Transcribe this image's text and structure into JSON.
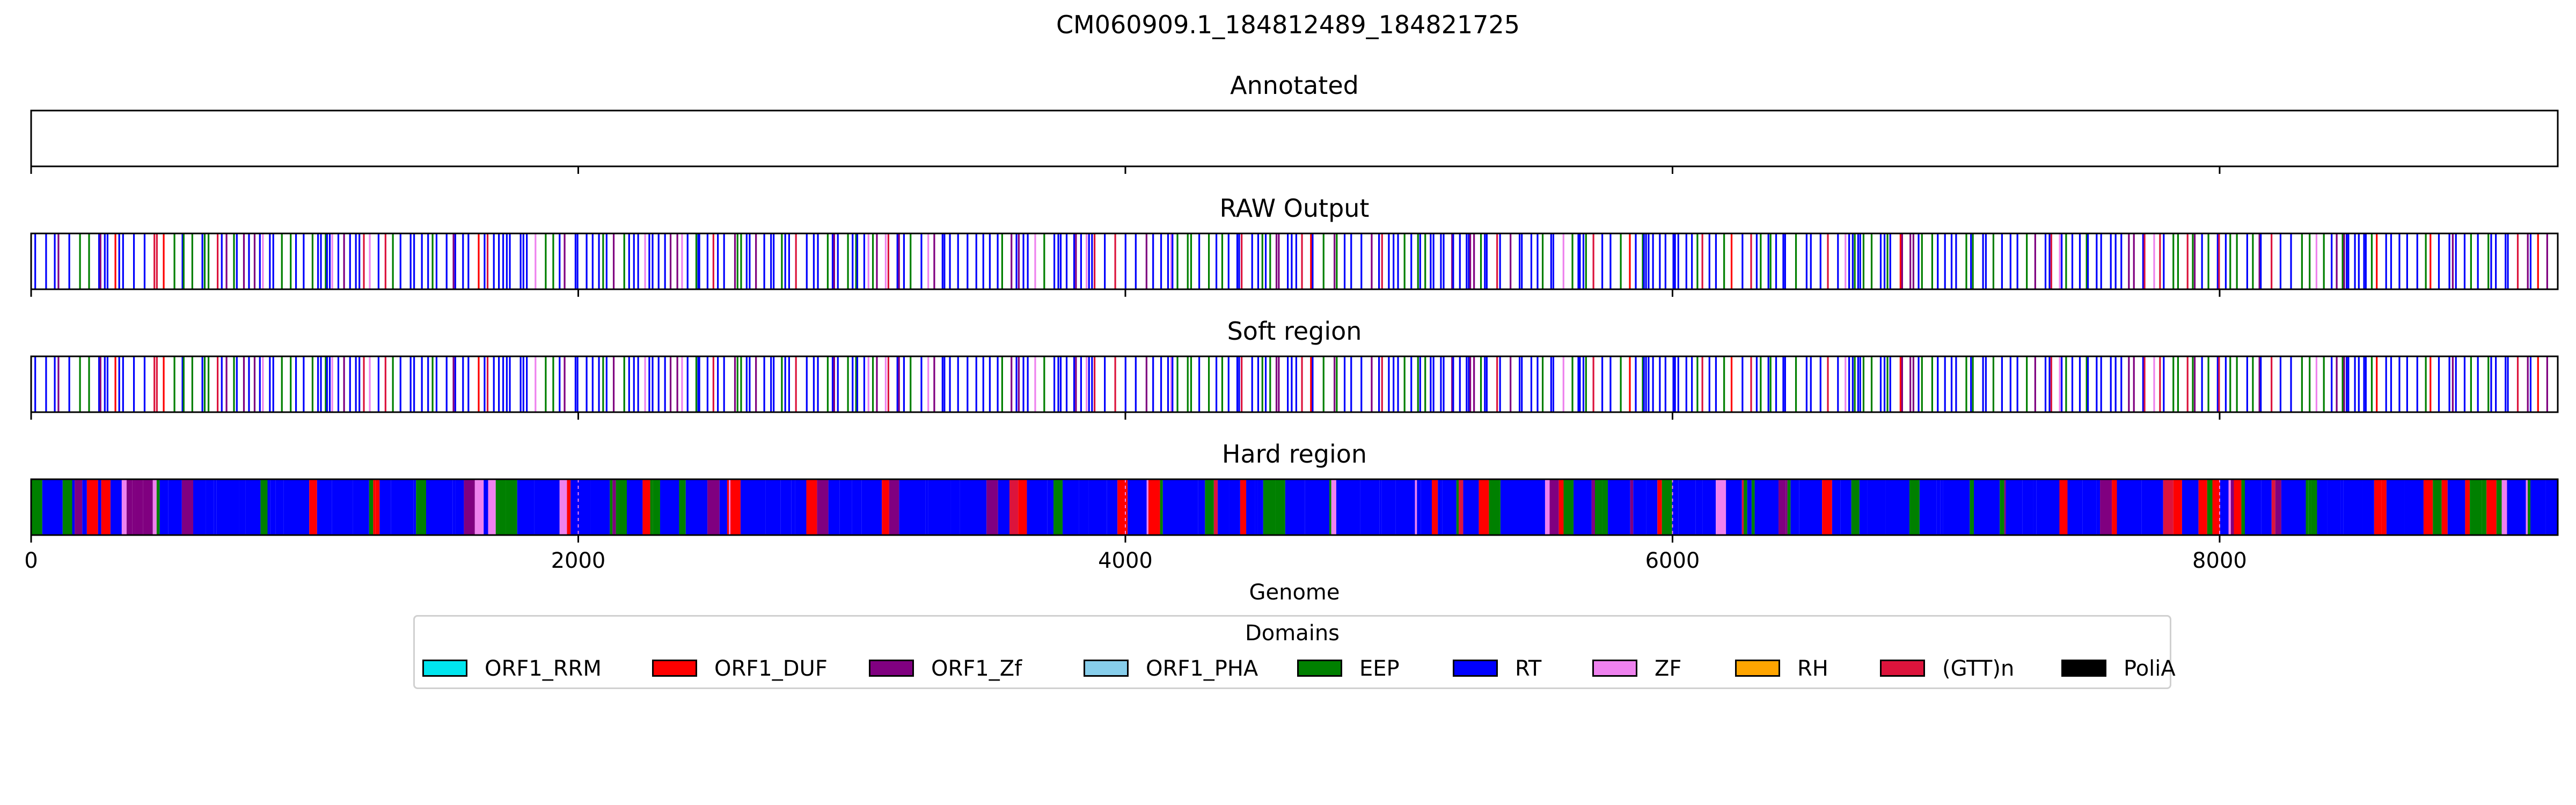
{
  "chart_data": {
    "type": "genome-track",
    "title": "CM060909.1_184812489_184821725",
    "xlabel": "Genome",
    "xlim": [
      0,
      9236
    ],
    "xticks": [
      0,
      2000,
      4000,
      6000,
      8000
    ],
    "tracks": [
      {
        "title": "Annotated",
        "mode": "empty"
      },
      {
        "title": "RAW Output",
        "mode": "lines"
      },
      {
        "title": "Soft region",
        "mode": "lines"
      },
      {
        "title": "Hard region",
        "mode": "filled"
      }
    ],
    "legend": {
      "title": "Domains",
      "placement": "lower-center",
      "items": [
        {
          "label": "ORF1_RRM",
          "color": "#00e5ee"
        },
        {
          "label": "ORF1_DUF",
          "color": "#ff0000"
        },
        {
          "label": "ORF1_Zf",
          "color": "#800080"
        },
        {
          "label": "ORF1_PHA",
          "color": "#87ceeb"
        },
        {
          "label": "EEP",
          "color": "#008000"
        },
        {
          "label": "RT",
          "color": "#0000ff"
        },
        {
          "label": "ZF",
          "color": "#ee82ee"
        },
        {
          "label": "RH",
          "color": "#ffa500"
        },
        {
          "label": "(GTT)n",
          "color": "#dc143c"
        },
        {
          "label": "PoliA",
          "color": "#000000"
        }
      ]
    }
  }
}
